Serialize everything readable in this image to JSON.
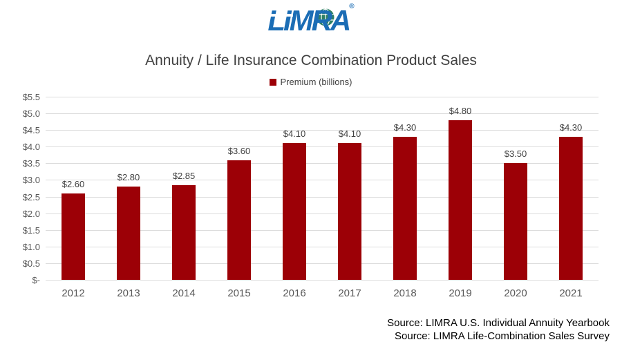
{
  "logo": {
    "text": "LIMRA",
    "registered_mark": "®",
    "brand_color": "#1B6DB5",
    "globe_color": "#2E8066"
  },
  "legend": {
    "label": "Premium (billions)",
    "swatch_color": "#9C0006"
  },
  "chart_data": {
    "type": "bar",
    "title": "Annuity / Life Insurance Combination Product Sales",
    "legend": "Premium (billions)",
    "legend_position": "top",
    "categories": [
      "2012",
      "2013",
      "2014",
      "2015",
      "2016",
      "2017",
      "2018",
      "2019",
      "2020",
      "2021"
    ],
    "values": [
      2.6,
      2.8,
      2.85,
      3.6,
      4.1,
      4.1,
      4.3,
      4.8,
      3.5,
      4.3
    ],
    "value_labels": [
      "$2.60",
      "$2.80",
      "$2.85",
      "$3.60",
      "$4.10",
      "$4.10",
      "$4.30",
      "$4.80",
      "$3.50",
      "$4.30"
    ],
    "xlabel": "",
    "ylabel": "Premium (billions)",
    "ylim": [
      0,
      5.5
    ],
    "y_tick_step": 0.5,
    "y_tick_labels": [
      "$5.5",
      "$5.0",
      "$4.5",
      "$4.0",
      "$3.5",
      "$3.0",
      "$2.5",
      "$2.0",
      "$1.5",
      "$1.0",
      "$0.5",
      "$-"
    ],
    "grid": true,
    "bar_color": "#9C0006"
  },
  "sources": [
    "Source: LIMRA U.S. Individual Annuity Yearbook",
    "Source: LIMRA Life-Combination Sales Survey"
  ]
}
